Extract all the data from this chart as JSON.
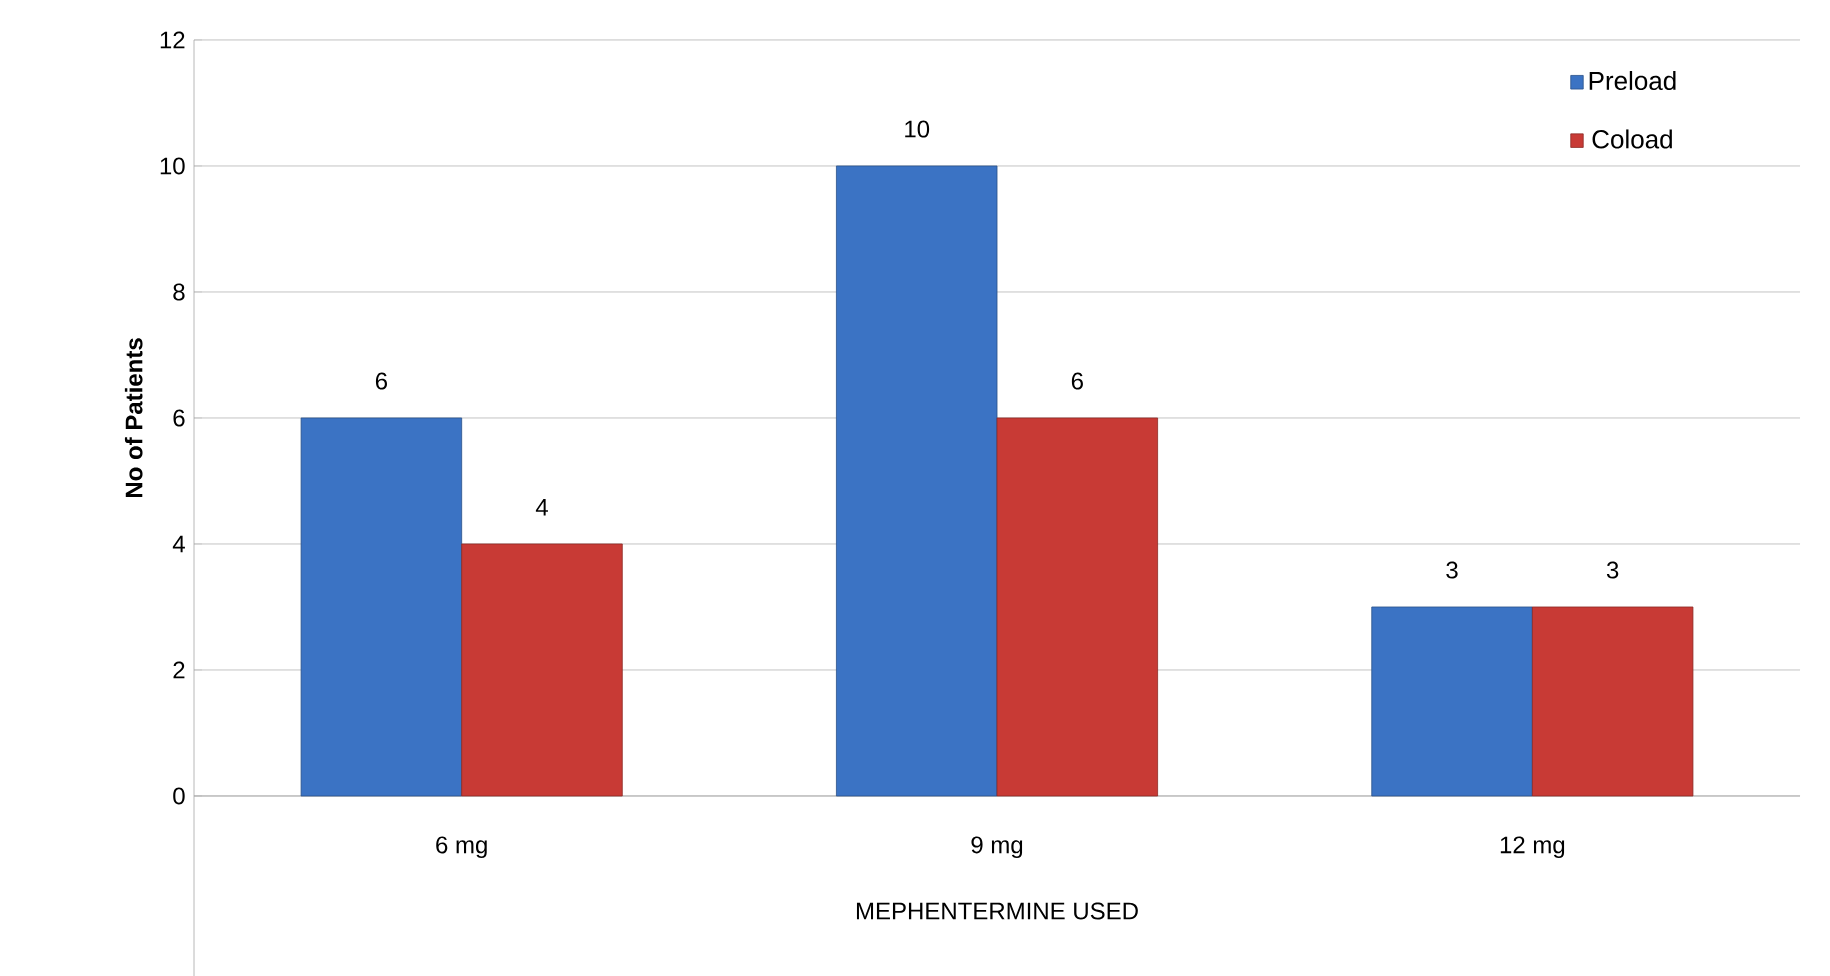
{
  "chart_data": {
    "type": "bar",
    "xlabel": "MEPHENTERMINE USED",
    "ylabel": "No of Patients",
    "categories": [
      "6 mg",
      "9 mg",
      "12 mg"
    ],
    "series": [
      {
        "name": "Preload",
        "color": "#3b73c4",
        "values": [
          6,
          10,
          3
        ]
      },
      {
        "name": "Coload",
        "color": "#c83a35",
        "values": [
          4,
          6,
          3
        ]
      }
    ],
    "ylim": [
      0,
      12
    ],
    "yticks": [
      0,
      2,
      4,
      6,
      8,
      10,
      12
    ],
    "grid": "y",
    "legend": "top right",
    "data_labels": true
  }
}
